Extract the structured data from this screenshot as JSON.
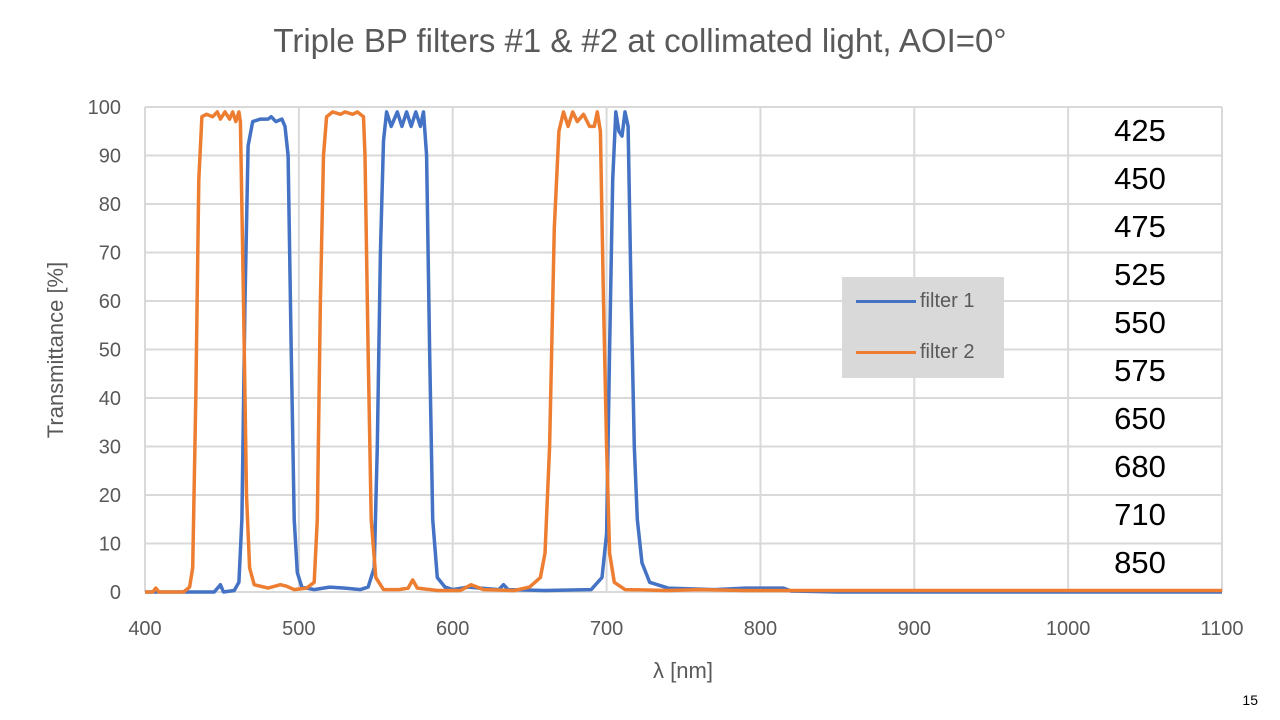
{
  "chart_data": {
    "type": "line",
    "title": "Triple BP filters #1 & #2 at collimated light, AOI=0°",
    "xlabel": "λ [nm]",
    "ylabel": "Transmittance [%]",
    "xlim": [
      400,
      1100
    ],
    "ylim": [
      0,
      100
    ],
    "xticks": [
      400,
      500,
      600,
      700,
      800,
      900,
      1000,
      1100
    ],
    "yticks": [
      0,
      10,
      20,
      30,
      40,
      50,
      60,
      70,
      80,
      90,
      100
    ],
    "grid": true,
    "legend_position": "center-right",
    "series": [
      {
        "name": "filter 1",
        "color": "#4472c4",
        "points": [
          [
            400,
            0
          ],
          [
            430,
            0
          ],
          [
            445,
            0
          ],
          [
            449,
            1.5
          ],
          [
            451,
            0
          ],
          [
            458,
            0.3
          ],
          [
            461,
            2
          ],
          [
            463,
            15
          ],
          [
            465,
            60
          ],
          [
            467,
            92
          ],
          [
            470,
            97
          ],
          [
            475,
            97.5
          ],
          [
            480,
            97.5
          ],
          [
            482,
            98
          ],
          [
            485,
            97
          ],
          [
            489,
            97.5
          ],
          [
            491,
            96
          ],
          [
            493,
            90
          ],
          [
            495,
            50
          ],
          [
            497,
            15
          ],
          [
            499,
            4
          ],
          [
            502,
            1
          ],
          [
            510,
            0.5
          ],
          [
            520,
            1
          ],
          [
            530,
            0.8
          ],
          [
            540,
            0.5
          ],
          [
            545,
            1
          ],
          [
            549,
            5
          ],
          [
            551,
            30
          ],
          [
            553,
            70
          ],
          [
            555,
            93
          ],
          [
            557,
            99
          ],
          [
            560,
            96
          ],
          [
            564,
            99
          ],
          [
            567,
            96
          ],
          [
            570,
            99
          ],
          [
            573,
            96
          ],
          [
            576,
            99
          ],
          [
            579,
            96
          ],
          [
            581,
            99
          ],
          [
            583,
            90
          ],
          [
            585,
            50
          ],
          [
            587,
            15
          ],
          [
            590,
            3
          ],
          [
            595,
            1
          ],
          [
            600,
            0.5
          ],
          [
            610,
            1
          ],
          [
            630,
            0.5
          ],
          [
            633,
            1.5
          ],
          [
            636,
            0.5
          ],
          [
            660,
            0.3
          ],
          [
            690,
            0.5
          ],
          [
            697,
            3
          ],
          [
            700,
            12
          ],
          [
            702,
            50
          ],
          [
            704,
            85
          ],
          [
            706,
            99
          ],
          [
            708,
            95
          ],
          [
            710,
            94
          ],
          [
            712,
            99
          ],
          [
            714,
            96
          ],
          [
            716,
            60
          ],
          [
            718,
            30
          ],
          [
            720,
            15
          ],
          [
            723,
            6
          ],
          [
            728,
            2
          ],
          [
            740,
            0.8
          ],
          [
            770,
            0.5
          ],
          [
            790,
            0.8
          ],
          [
            815,
            0.8
          ],
          [
            820,
            0.2
          ],
          [
            850,
            0
          ],
          [
            1100,
            0
          ]
        ]
      },
      {
        "name": "filter 2",
        "color": "#ed7d31",
        "points": [
          [
            400,
            0
          ],
          [
            405,
            0
          ],
          [
            407,
            0.8
          ],
          [
            409,
            0
          ],
          [
            425,
            0
          ],
          [
            429,
            1
          ],
          [
            431,
            5
          ],
          [
            433,
            40
          ],
          [
            435,
            85
          ],
          [
            437,
            98
          ],
          [
            440,
            98.5
          ],
          [
            444,
            98
          ],
          [
            447,
            99
          ],
          [
            449,
            97.5
          ],
          [
            452,
            99
          ],
          [
            455,
            97.5
          ],
          [
            457,
            99
          ],
          [
            459,
            97
          ],
          [
            461,
            99
          ],
          [
            462,
            97
          ],
          [
            464,
            60
          ],
          [
            466,
            20
          ],
          [
            468,
            5
          ],
          [
            471,
            1.5
          ],
          [
            480,
            0.8
          ],
          [
            488,
            1.5
          ],
          [
            492,
            1.2
          ],
          [
            497,
            0.5
          ],
          [
            505,
            0.8
          ],
          [
            510,
            2
          ],
          [
            512,
            15
          ],
          [
            514,
            60
          ],
          [
            516,
            90
          ],
          [
            518,
            98
          ],
          [
            522,
            99
          ],
          [
            527,
            98.5
          ],
          [
            530,
            99
          ],
          [
            535,
            98.5
          ],
          [
            538,
            99
          ],
          [
            542,
            98
          ],
          [
            543,
            90
          ],
          [
            545,
            50
          ],
          [
            547,
            15
          ],
          [
            550,
            3
          ],
          [
            555,
            0.5
          ],
          [
            565,
            0.5
          ],
          [
            571,
            0.8
          ],
          [
            574,
            2.5
          ],
          [
            577,
            0.8
          ],
          [
            590,
            0.3
          ],
          [
            605,
            0.3
          ],
          [
            612,
            1.5
          ],
          [
            616,
            1
          ],
          [
            620,
            0.5
          ],
          [
            640,
            0.3
          ],
          [
            650,
            1
          ],
          [
            657,
            3
          ],
          [
            660,
            8
          ],
          [
            663,
            30
          ],
          [
            666,
            75
          ],
          [
            669,
            95
          ],
          [
            672,
            99
          ],
          [
            675,
            96
          ],
          [
            678,
            99
          ],
          [
            681,
            97
          ],
          [
            685,
            98.5
          ],
          [
            689,
            96
          ],
          [
            692,
            96
          ],
          [
            694,
            99
          ],
          [
            696,
            95
          ],
          [
            698,
            60
          ],
          [
            700,
            30
          ],
          [
            702,
            8
          ],
          [
            705,
            2
          ],
          [
            712,
            0.5
          ],
          [
            740,
            0.3
          ],
          [
            760,
            0.5
          ],
          [
            790,
            0.3
          ],
          [
            900,
            0.3
          ],
          [
            1040,
            0.3
          ],
          [
            1080,
            0.3
          ],
          [
            1100,
            0.3
          ]
        ]
      }
    ],
    "annotations": [
      "425",
      "450",
      "475",
      "525",
      "550",
      "575",
      "650",
      "680",
      "710",
      "850"
    ]
  },
  "page_number": "15"
}
